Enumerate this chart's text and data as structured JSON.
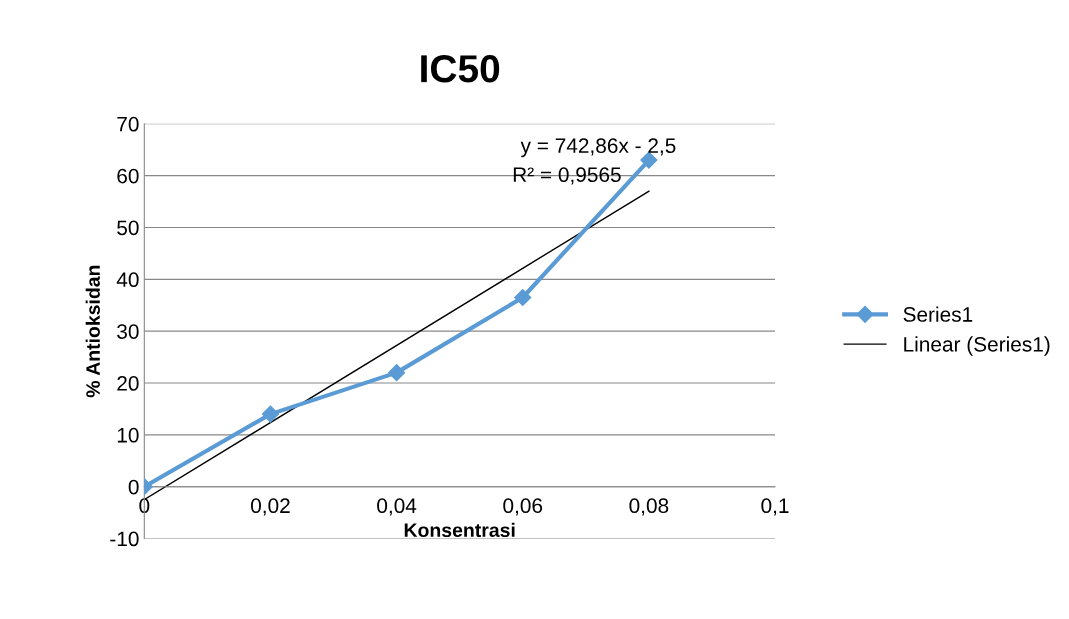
{
  "chart_data": {
    "type": "line",
    "title": "IC50",
    "xlabel": "Konsentrasi",
    "ylabel": "% Antioksidan",
    "series": [
      {
        "name": "Series1",
        "color": "#5b9bd5",
        "x": [
          0,
          0.02,
          0.04,
          0.06,
          0.08
        ],
        "values": [
          0,
          14,
          22,
          36.5,
          63
        ],
        "marker": "diamond"
      },
      {
        "name": "Linear (Series1)",
        "type": "line",
        "color": "#000000",
        "x": [
          0,
          0.08
        ],
        "values": [
          -2.5,
          57
        ],
        "marker": "none"
      }
    ],
    "annotations": [
      "y = 742,86x - 2,5",
      "R² = 0,9565"
    ],
    "xlim": [
      0,
      0.1
    ],
    "ylim": [
      -10,
      70
    ],
    "xticks": [
      0,
      {
        "value": 0.02,
        "label": "0,02"
      },
      {
        "value": 0.04,
        "label": "0,04"
      },
      {
        "value": 0.06,
        "label": "0,06"
      },
      {
        "value": 0.08,
        "label": "0,08"
      },
      {
        "value": 0.1,
        "label": "0,1"
      }
    ],
    "yticks": [
      -10,
      0,
      10,
      20,
      30,
      40,
      50,
      60,
      70
    ],
    "grid": "y",
    "legend": "right"
  }
}
